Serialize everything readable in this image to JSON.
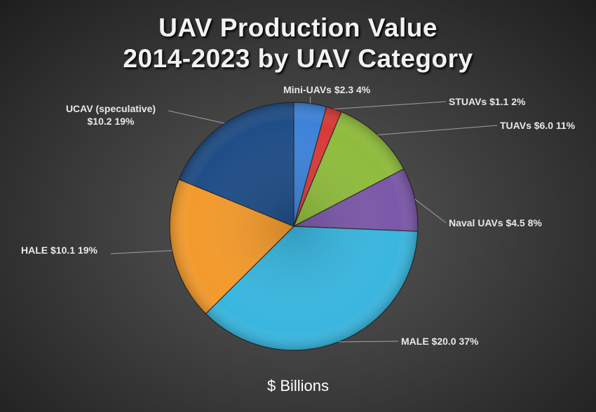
{
  "chart_data": {
    "type": "pie",
    "title_line1": "UAV Production Value",
    "title_line2": "2014-2023 by UAV Category",
    "unit_label": "$ Billions",
    "slices": [
      {
        "name": "Mini-UAVs",
        "value": 2.3,
        "value_label": "$2.3",
        "percent": "4%",
        "color": "#3d82d8"
      },
      {
        "name": "STUAVs",
        "value": 1.1,
        "value_label": "$1.1",
        "percent": "2%",
        "color": "#d83a36"
      },
      {
        "name": "TUAVs",
        "value": 6.0,
        "value_label": "$6.0",
        "percent": "11%",
        "color": "#8fbc3c"
      },
      {
        "name": "Naval UAVs",
        "value": 4.5,
        "value_label": "$4.5",
        "percent": "8%",
        "color": "#7b58a8"
      },
      {
        "name": "MALE",
        "value": 20.0,
        "value_label": "$20.0",
        "percent": "37%",
        "color": "#39b6df"
      },
      {
        "name": "HALE",
        "value": 10.1,
        "value_label": "$10.1",
        "percent": "19%",
        "color": "#f39a2c"
      },
      {
        "name": "UCAV (speculative)",
        "value": 10.2,
        "value_label": "$10.2",
        "percent": "19%",
        "color": "#1f4d86"
      }
    ]
  }
}
